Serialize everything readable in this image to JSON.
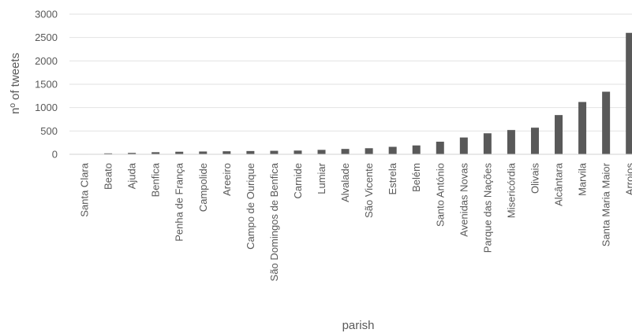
{
  "chart_data": {
    "type": "bar",
    "title": "",
    "xlabel": "parish",
    "ylabel": "nº of tweets",
    "ylim": [
      0,
      3000
    ],
    "yticks": [
      0,
      500,
      1000,
      1500,
      2000,
      2500,
      3000
    ],
    "grid": true,
    "legend": "none",
    "bar_color": "#595959",
    "categories": [
      "Santa Clara",
      "Beato",
      "Ajuda",
      "Benfica",
      "Penha de França",
      "Campolide",
      "Areeiro",
      "Campo de Ourique",
      "São Domingos de Benfica",
      "Carnide",
      "Lumiar",
      "Alvalade",
      "São Vicente",
      "Estrela",
      "Belém",
      "Santo António",
      "Avenidas Novas",
      "Parque das Nações",
      "Misericórdia",
      "Olivais",
      "Alcântara",
      "Marvila",
      "Santa Maria Maior",
      "Arroios"
    ],
    "values": [
      5,
      20,
      30,
      45,
      55,
      60,
      65,
      70,
      75,
      80,
      95,
      115,
      130,
      160,
      190,
      270,
      360,
      450,
      520,
      570,
      840,
      1120,
      1340,
      2600
    ]
  }
}
